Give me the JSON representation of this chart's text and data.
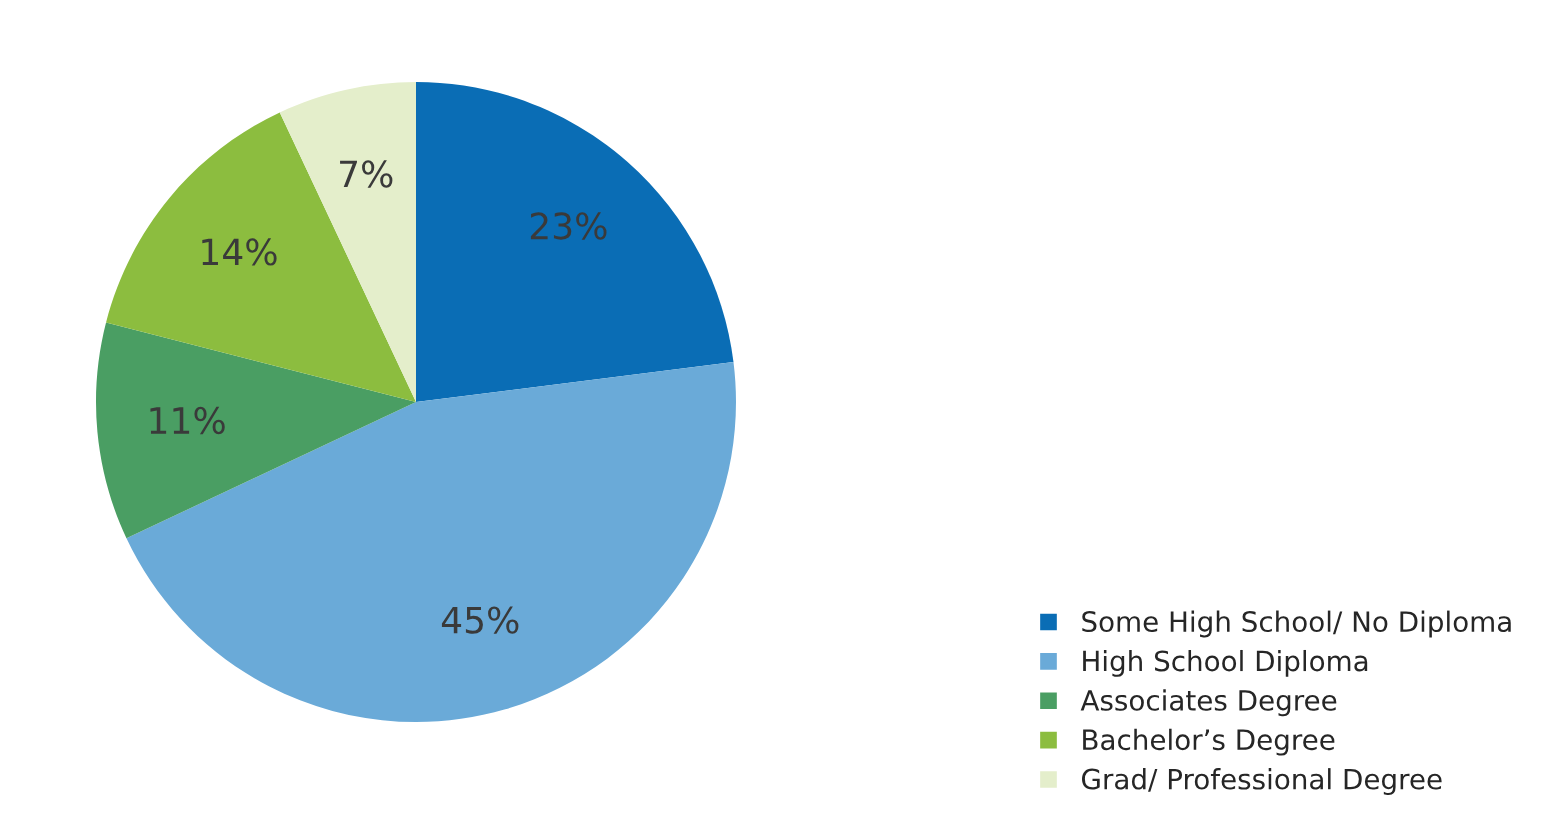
{
  "chart_data": {
    "type": "pie",
    "categories": [
      "Some High School/ No Diploma",
      "High School Diploma",
      "Associates Degree",
      "Bachelor’s Degree",
      "Grad/ Professional Degree"
    ],
    "values": [
      23,
      45,
      11,
      14,
      7
    ],
    "colors": [
      "#0a6db5",
      "#6aaad8",
      "#4a9e63",
      "#8cbd3f",
      "#e4eecb"
    ],
    "value_labels": [
      "23%",
      "45%",
      "11%",
      "14%",
      "7%"
    ],
    "legend": "bottom right"
  }
}
